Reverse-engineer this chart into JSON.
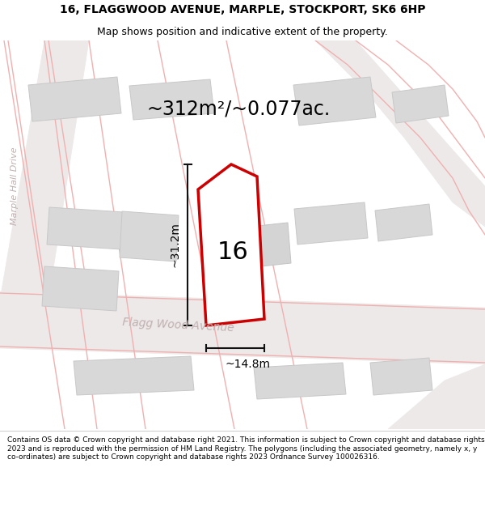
{
  "title_line1": "16, FLAGGWOOD AVENUE, MARPLE, STOCKPORT, SK6 6HP",
  "title_line2": "Map shows position and indicative extent of the property.",
  "footer_text": "Contains OS data © Crown copyright and database right 2021. This information is subject to Crown copyright and database rights 2023 and is reproduced with the permission of HM Land Registry. The polygons (including the associated geometry, namely x, y co-ordinates) are subject to Crown copyright and database rights 2023 Ordnance Survey 100026316.",
  "area_label": "~312m²/~0.077ac.",
  "number_label": "16",
  "width_label": "~14.8m",
  "height_label": "~31.2m",
  "road_label": "Flagg Wood Avenue",
  "side_label": "Marple Hall Drive",
  "plot_color": "#cc0000",
  "building_color": "#d8d8d8",
  "building_edge": "#c8c8c8",
  "road_fill": "#ede9e9",
  "map_bg": "#f7f5f5",
  "road_line": "#f0b0b0",
  "dim_color": "#111111",
  "road_text_color": "#c0b0b0",
  "title_fontsize": 10,
  "subtitle_fontsize": 9,
  "area_fontsize": 17,
  "number_fontsize": 22,
  "dim_fontsize": 10,
  "road_fontsize": 10,
  "side_fontsize": 8,
  "footer_fontsize": 6.5
}
